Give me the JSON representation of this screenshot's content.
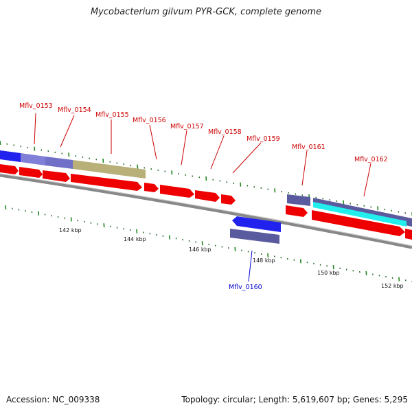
{
  "title": "Mycobacterium gilvum PYR-GCK, complete genome",
  "accession": "Accession: NC_009338",
  "summary": "Topology: circular; Length: 5,619,607 bp; Genes: 5,295",
  "colors": {
    "label_forward": "#cc0000",
    "label_reverse": "#0000cc",
    "cds": "#ee0000",
    "blue_gene": "#2222ee",
    "purple_gene": "#5a5a9e",
    "lavender_gene": "#8080d8",
    "olive_gene": "#b8b078",
    "cyan_gene": "#22eeee",
    "backbone": "#888888",
    "tick": "#228822"
  },
  "gene_labels": [
    {
      "text": "Mflv_0153",
      "strand": "forward"
    },
    {
      "text": "Mflv_0154",
      "strand": "forward"
    },
    {
      "text": "Mflv_0155",
      "strand": "forward"
    },
    {
      "text": "Mflv_0156",
      "strand": "forward"
    },
    {
      "text": "Mflv_0157",
      "strand": "forward"
    },
    {
      "text": "Mflv_0158",
      "strand": "forward"
    },
    {
      "text": "Mflv_0159",
      "strand": "forward"
    },
    {
      "text": "Mflv_0161",
      "strand": "forward"
    },
    {
      "text": "Mflv_0162",
      "strand": "forward"
    },
    {
      "text": "Mflv_0160",
      "strand": "reverse"
    }
  ],
  "scale_labels": [
    "142 kbp",
    "144 kbp",
    "146 kbp",
    "148 kbp",
    "150 kbp",
    "152 kbp"
  ]
}
